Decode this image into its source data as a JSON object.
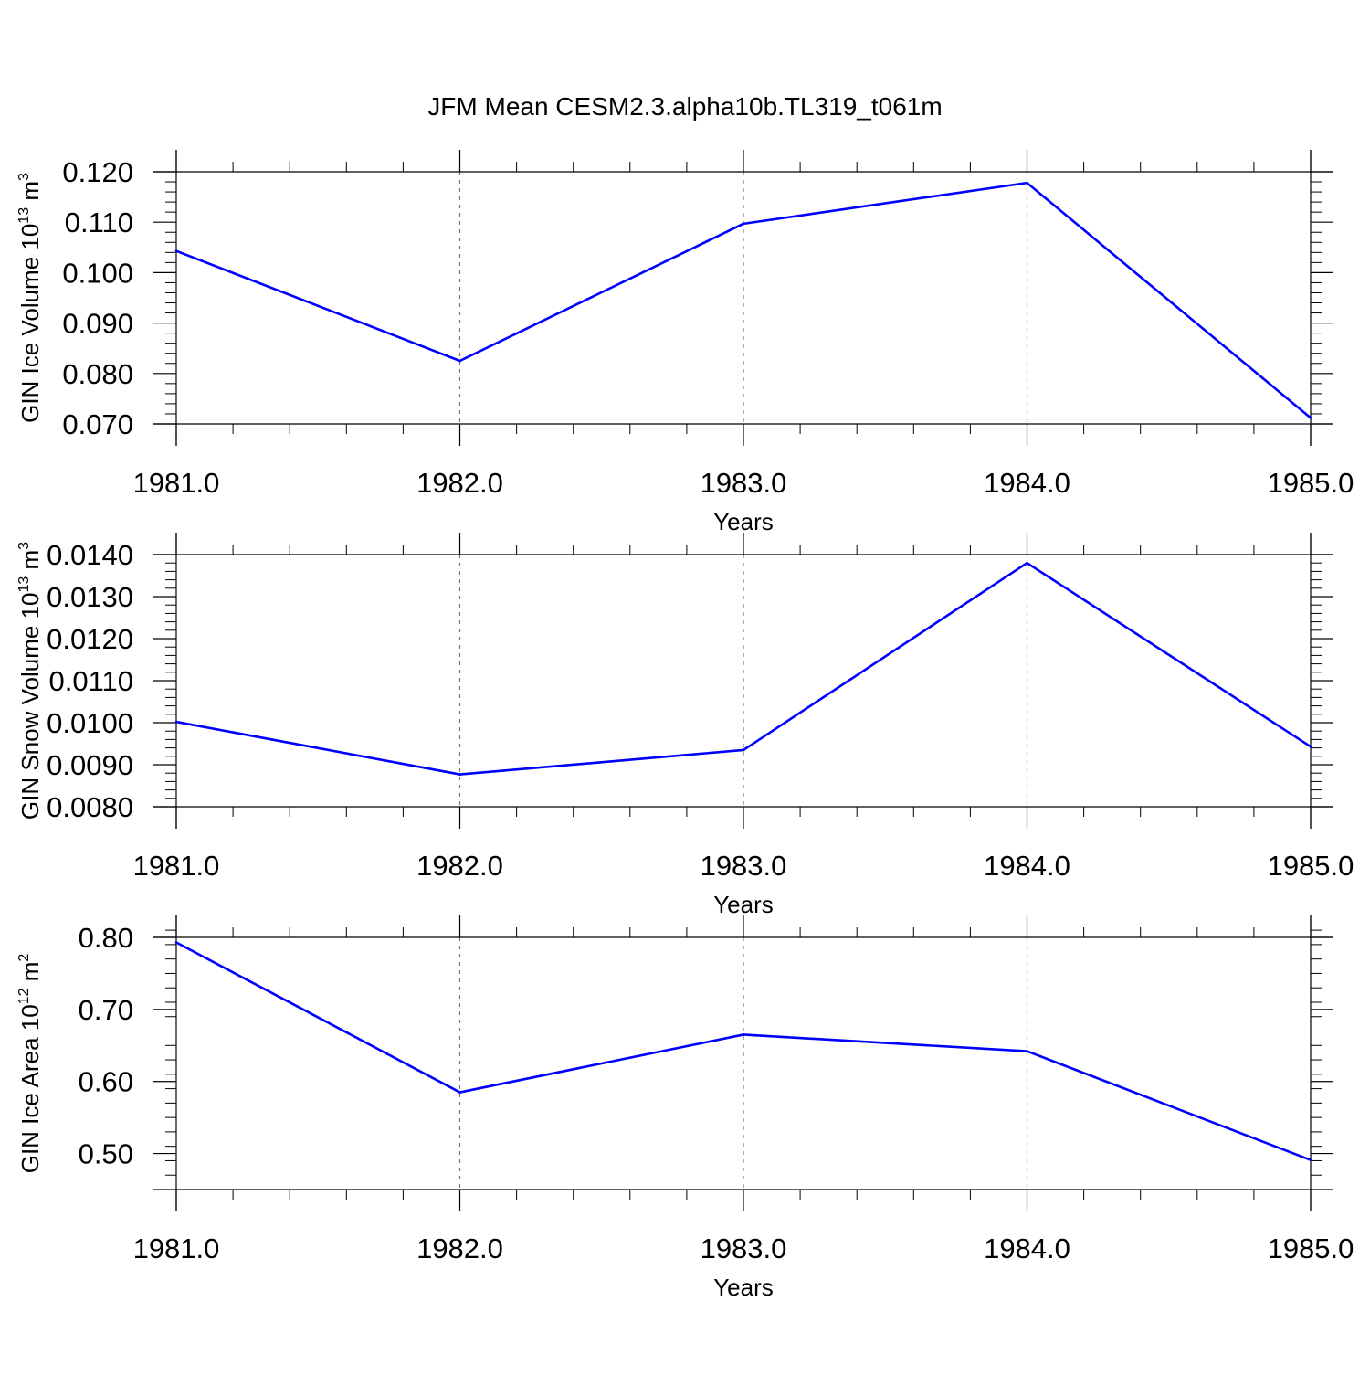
{
  "figure": {
    "title": "JFM Mean CESM2.3.alpha10b.TL319_t061m",
    "line_color": "#0000ff"
  },
  "chart_data": [
    {
      "type": "line",
      "title": "JFM Mean CESM2.3.alpha10b.TL319_t061m",
      "xlabel": "Years",
      "ylabel": "GIN Ice Volume 10",
      "ylabel_exponent": "13",
      "ylabel_unit": " m",
      "ylabel_unit_exponent": "3",
      "x": [
        1981,
        1982,
        1983,
        1984,
        1985
      ],
      "xlim": [
        1981,
        1985
      ],
      "xticks": [
        1981,
        1982,
        1983,
        1984,
        1985
      ],
      "xtick_labels": [
        "1981.0",
        "1982.0",
        "1983.0",
        "1984.0",
        "1985.0"
      ],
      "ylim": [
        0.07,
        0.12
      ],
      "yticks": [
        0.07,
        0.08,
        0.09,
        0.1,
        0.11,
        0.12
      ],
      "ytick_labels": [
        "0.070",
        "0.080",
        "0.090",
        "0.100",
        "0.110",
        "0.120"
      ],
      "yminor_step": 0.002,
      "grid": "vertical-dashed",
      "series": [
        {
          "values": [
            0.1043,
            0.0825,
            0.1097,
            0.1178,
            0.0712
          ]
        }
      ]
    },
    {
      "type": "line",
      "xlabel": "Years",
      "ylabel": "GIN Snow Volume 10",
      "ylabel_exponent": "13",
      "ylabel_unit": " m",
      "ylabel_unit_exponent": "3",
      "x": [
        1981,
        1982,
        1983,
        1984,
        1985
      ],
      "xlim": [
        1981,
        1985
      ],
      "xticks": [
        1981,
        1982,
        1983,
        1984,
        1985
      ],
      "xtick_labels": [
        "1981.0",
        "1982.0",
        "1983.0",
        "1984.0",
        "1985.0"
      ],
      "ylim": [
        0.008,
        0.014
      ],
      "yticks": [
        0.008,
        0.009,
        0.01,
        0.011,
        0.012,
        0.013,
        0.014
      ],
      "ytick_labels": [
        "0.0080",
        "0.0090",
        "0.0100",
        "0.0110",
        "0.0120",
        "0.0130",
        "0.0140"
      ],
      "yminor_step": 0.0002,
      "grid": "vertical-dashed",
      "series": [
        {
          "values": [
            0.01002,
            0.00877,
            0.00935,
            0.0138,
            0.00943
          ]
        }
      ]
    },
    {
      "type": "line",
      "xlabel": "Years",
      "ylabel": "GIN Ice Area 10",
      "ylabel_exponent": "12",
      "ylabel_unit": " m",
      "ylabel_unit_exponent": "2",
      "x": [
        1981,
        1982,
        1983,
        1984,
        1985
      ],
      "xlim": [
        1981,
        1985
      ],
      "xticks": [
        1981,
        1982,
        1983,
        1984,
        1985
      ],
      "xtick_labels": [
        "1981.0",
        "1982.0",
        "1983.0",
        "1984.0",
        "1985.0"
      ],
      "ylim": [
        0.45,
        0.8
      ],
      "yticks": [
        0.5,
        0.6,
        0.7,
        0.8
      ],
      "ytick_labels": [
        "0.50",
        "0.60",
        "0.70",
        "0.80"
      ],
      "yminor_step": 0.02,
      "grid": "vertical-dashed",
      "series": [
        {
          "values": [
            0.793,
            0.585,
            0.665,
            0.642,
            0.491
          ]
        }
      ]
    }
  ]
}
